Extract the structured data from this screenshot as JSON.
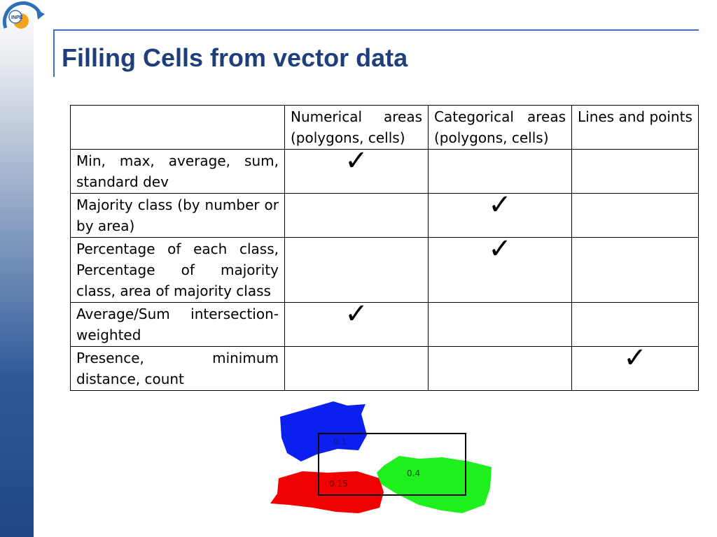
{
  "title": "Filling Cells from vector data",
  "logo": {
    "text": "INPE"
  },
  "table": {
    "headers": [
      "",
      "Numerical areas (polygons, cells)",
      "Categorical areas (polygons, cells)",
      "Lines and points"
    ],
    "check_glyph": "✓",
    "rows": [
      {
        "label": "Min, max, average, sum, standard dev",
        "checks": [
          true,
          false,
          false
        ]
      },
      {
        "label": "Majority class (by number or by area)",
        "checks": [
          false,
          true,
          false
        ]
      },
      {
        "label": "Percentage of each class, Percentage of majority class, area of majority class",
        "checks": [
          false,
          true,
          false
        ]
      },
      {
        "label": "Average/Sum intersection-weighted",
        "checks": [
          true,
          false,
          false
        ]
      },
      {
        "label": "Presence, minimum distance, count",
        "checks": [
          false,
          false,
          true
        ]
      }
    ]
  },
  "diagram": {
    "labels": {
      "blue": "0.1",
      "red": "0.15",
      "green": "0.4"
    },
    "colors": {
      "blue": "#0a1ff0",
      "red": "#f00000",
      "green": "#1ef01e"
    }
  },
  "colors": {
    "title": "#1f3f7a",
    "rule": "#3b72b2"
  }
}
